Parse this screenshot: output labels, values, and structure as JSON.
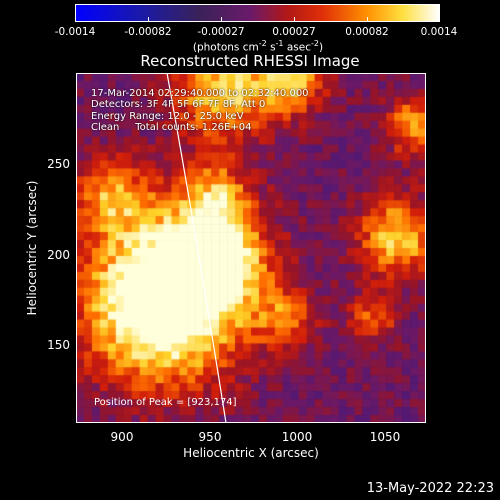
{
  "colorbar": {
    "tick_labels": [
      "-0.0014",
      "-0.00082",
      "-0.00027",
      "0.00027",
      "0.00082",
      "0.0014"
    ],
    "units": "(photons cm",
    "units_exp1": "-2",
    "units_mid": " s",
    "units_exp2": "-1",
    "units_mid2": " asec",
    "units_exp3": "-2",
    "units_end": ")"
  },
  "title": "Reconstructed RHESSI Image",
  "info": {
    "time": "17-Mar-2014 02:29:40.000 to 02:32:40.000",
    "detectors": "Detectors: 3F 4F 5F 6F 7F 8F, Att 0",
    "energy": "Energy Range: 12.0 - 25.0 keV",
    "clean": "Clean     Total counts: 1.26E+04"
  },
  "peak": "Position of Peak = [923,174]",
  "axes": {
    "xlabel": "Heliocentric X (arcsec)",
    "ylabel": "Heliocentric Y (arcsec)",
    "x_ticks": [
      "900",
      "950",
      "1000",
      "1050"
    ],
    "y_ticks": [
      "150",
      "200",
      "250"
    ]
  },
  "timestamp": "13-May-2022 22:23",
  "colors": {
    "background": "#000000",
    "limb_line": "#ffffff"
  }
}
